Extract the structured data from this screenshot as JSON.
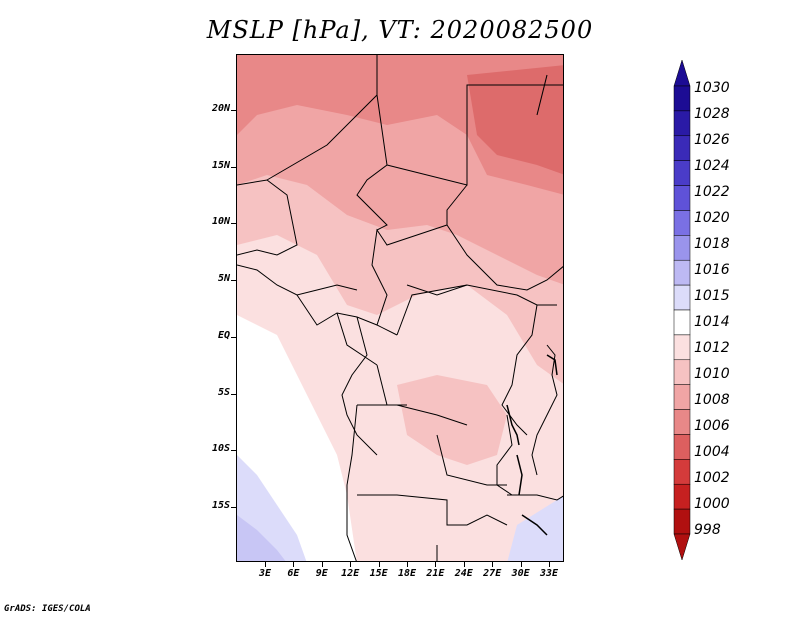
{
  "title": "MSLP [hPa], VT: 2020082500",
  "footer": "GrADS: IGES/COLA",
  "lat_labels": [
    "20N",
    "15N",
    "10N",
    "5N",
    "EQ",
    "5S",
    "10S",
    "15S"
  ],
  "lon_labels": [
    "3E",
    "6E",
    "9E",
    "12E",
    "15E",
    "18E",
    "21E",
    "24E",
    "27E",
    "30E",
    "33E"
  ],
  "colorbar": {
    "levels": [
      "1030",
      "1028",
      "1026",
      "1024",
      "1022",
      "1020",
      "1018",
      "1016",
      "1015",
      "1014",
      "1012",
      "1010",
      "1008",
      "1006",
      "1004",
      "1002",
      "1000",
      "998"
    ],
    "colors": [
      "#1c0c94",
      "#2a1aa6",
      "#3a2ab8",
      "#4a3cc8",
      "#5f52d8",
      "#7a70e4",
      "#9a94ec",
      "#bdb9f3",
      "#dcdcfa",
      "#ffffff",
      "#fbe0e0",
      "#f6c2c2",
      "#f0a5a5",
      "#e88888",
      "#dd5f5f",
      "#d43b3b",
      "#c62020",
      "#b01010"
    ]
  },
  "map_colors": {
    "p1015": "#dcdcfa",
    "p1016": "#c8c6f5",
    "p1014": "#ffffff",
    "p1012": "#fbe0e0",
    "p1010": "#f6c2c2",
    "p1008": "#f0a5a5",
    "p1006": "#e88888",
    "p1004": "#dd6b6b"
  }
}
